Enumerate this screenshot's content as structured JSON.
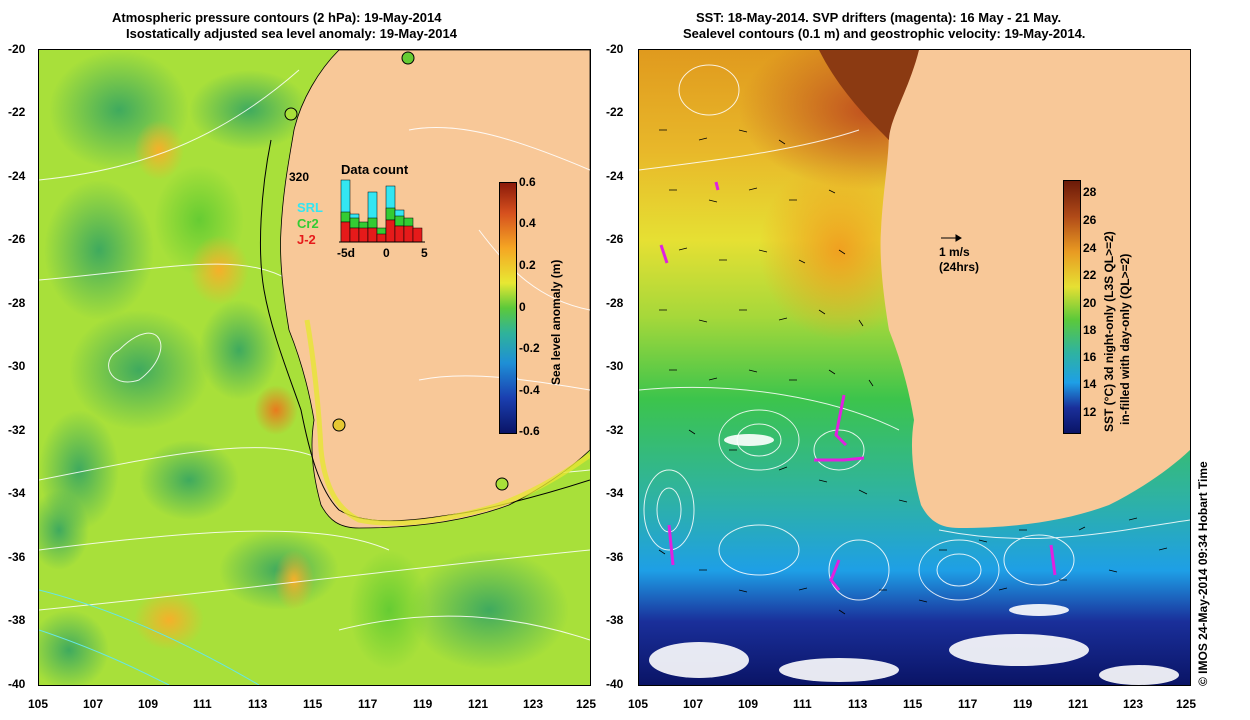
{
  "left_panel": {
    "title_line1": "Atmospheric pressure contours (2 hPa): 19-May-2014",
    "title_line2": "Isostatically adjusted sea level anomaly: 19-May-2014",
    "y_ticks": [
      "-20",
      "-22",
      "-24",
      "-26",
      "-28",
      "-30",
      "-32",
      "-34",
      "-36",
      "-38",
      "-40"
    ],
    "x_ticks": [
      "105",
      "107",
      "109",
      "111",
      "113",
      "115",
      "117",
      "119",
      "121",
      "123",
      "125"
    ],
    "colorbar": {
      "label": "Sea level anomaly (m)",
      "ticks": [
        "0.6",
        "0.4",
        "0.2",
        "0",
        "-0.2",
        "-0.4",
        "-0.6"
      ]
    },
    "data_count": {
      "title": "Data count",
      "max_label": "320",
      "legend": [
        {
          "name": "SRL",
          "color": "#33e6f2"
        },
        {
          "name": "Cr2",
          "color": "#33cc33"
        },
        {
          "name": "J-2",
          "color": "#e61a1a"
        }
      ],
      "x_ticks": [
        "-5d",
        "0",
        "5"
      ]
    },
    "colors": {
      "land": "#f8c898",
      "ocean_base": "#a8e03a"
    }
  },
  "right_panel": {
    "title_line1": "SST: 18-May-2014. SVP drifters (magenta): 16 May - 21 May.",
    "title_line2": "Sealevel contours (0.1 m) and geostrophic velocity: 19-May-2014.",
    "y_ticks": [
      "-20",
      "-22",
      "-24",
      "-26",
      "-28",
      "-30",
      "-32",
      "-34",
      "-36",
      "-38",
      "-40"
    ],
    "x_ticks": [
      "105",
      "107",
      "109",
      "111",
      "113",
      "115",
      "117",
      "119",
      "121",
      "123",
      "125"
    ],
    "scale_arrow_label": "1 m/s",
    "scale_arrow_sub": "(24hrs)",
    "colorbar": {
      "label_line1": "SST (°C) 3d night-only (L3S QL>=2)",
      "label_line2": "in-filled with day-only (QL>=2)",
      "ticks": [
        "28",
        "26",
        "24",
        "22",
        "20",
        "18",
        "16",
        "14",
        "12"
      ]
    },
    "colors": {
      "land": "#f8c898",
      "drifter": "#e020e0"
    }
  },
  "credit": "© IMOS 24-May-2014 09:34 Hobart Time"
}
